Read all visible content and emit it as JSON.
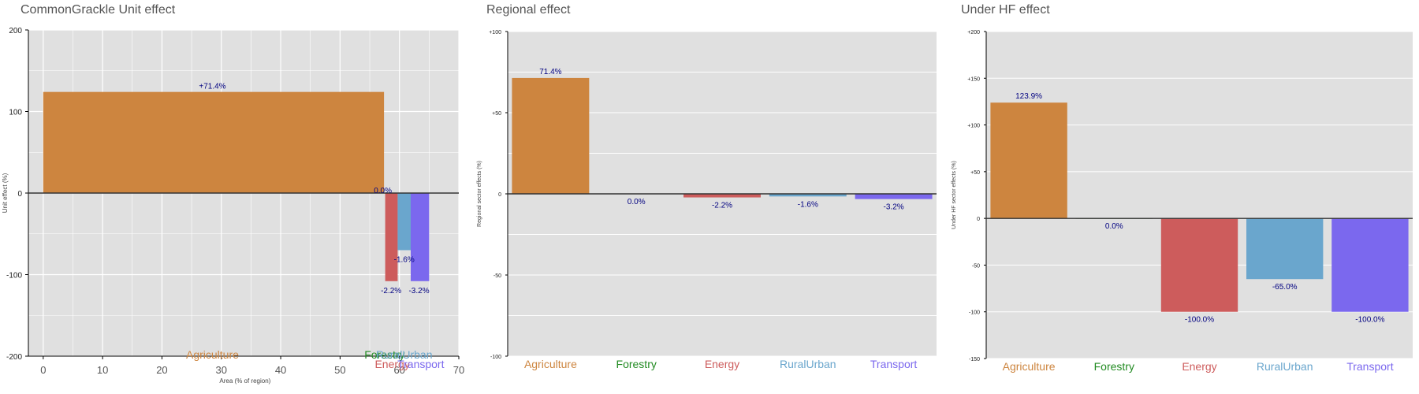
{
  "colors": {
    "panel_bg": "#E0E0E0",
    "grid": "#FFFFFF",
    "zero_line": "#333333",
    "value_label": "#000080",
    "sectors": {
      "Agriculture": "#CD853F",
      "Forestry": "#228B22",
      "Energy": "#CD5C5C",
      "RuralUrban": "#6AA6CD",
      "Transport": "#7B68EE"
    }
  },
  "panels": [
    {
      "title": "CommonGrackle Unit effect",
      "chart_data": {
        "type": "bar",
        "variable_width": true,
        "title": "CommonGrackle Unit effect",
        "xlabel": "Area (% of region)",
        "ylabel": "Unit effect (%)",
        "xlim": [
          -2.5,
          70
        ],
        "ylim": [
          -200,
          200
        ],
        "xticks": [
          "0",
          "10",
          "20",
          "30",
          "40",
          "50",
          "60",
          "70"
        ],
        "yticks": [
          "200",
          "100",
          "0",
          "-100",
          "-200"
        ],
        "categories": [
          "Agriculture",
          "Forestry",
          "Energy",
          "RuralUrban",
          "Transport"
        ],
        "x_start": [
          0,
          57.4,
          57.6,
          59.7,
          61.9
        ],
        "widths": [
          57.4,
          0.2,
          2.1,
          2.2,
          3.1
        ],
        "values": [
          124,
          0,
          -108,
          -70,
          -108
        ],
        "labels": [
          "+71.4%",
          "0.0%",
          "-2.2%",
          "-1.6%",
          "-3.2%"
        ]
      }
    },
    {
      "title": "Regional effect",
      "chart_data": {
        "type": "bar",
        "title": "Regional effect",
        "xlabel": "",
        "ylabel": "Regional sector effects (%)",
        "ylim": [
          -100,
          100
        ],
        "yticks": [
          "+100",
          "+50",
          "0",
          "-50",
          "-100"
        ],
        "categories": [
          "Agriculture",
          "Forestry",
          "Energy",
          "RuralUrban",
          "Transport"
        ],
        "values": [
          71.4,
          0,
          -2.2,
          -1.6,
          -3.2
        ],
        "labels": [
          "71.4%",
          "0.0%",
          "-2.2%",
          "-1.6%",
          "-3.2%"
        ]
      }
    },
    {
      "title": "Under HF effect",
      "chart_data": {
        "type": "bar",
        "title": "Under HF effect",
        "xlabel": "",
        "ylabel": "Under HF sector effects (%)",
        "ylim": [
          -150,
          200
        ],
        "yticks": [
          "+200",
          "+150",
          "+100",
          "+50",
          "0",
          "-50",
          "-100",
          "-150"
        ],
        "categories": [
          "Agriculture",
          "Forestry",
          "Energy",
          "RuralUrban",
          "Transport"
        ],
        "values": [
          123.9,
          0,
          -100,
          -65,
          -100
        ],
        "labels": [
          "123.9%",
          "0.0%",
          "-100.0%",
          "-65.0%",
          "-100.0%"
        ]
      }
    }
  ]
}
